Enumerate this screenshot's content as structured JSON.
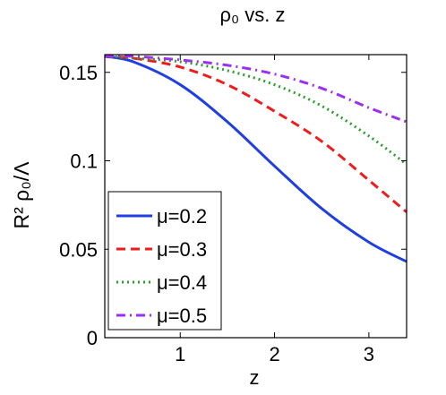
{
  "chart_data": {
    "type": "line",
    "title": "ρ₀ vs. z",
    "xlabel": "z",
    "ylabel": "R² ρ₀/Λ",
    "xlim": [
      0.2,
      3.4
    ],
    "ylim": [
      0,
      0.16
    ],
    "xticks": [
      1,
      2,
      3
    ],
    "xtick_labels": [
      "1",
      "2",
      "3"
    ],
    "yticks": [
      0,
      0.05,
      0.1,
      0.15
    ],
    "ytick_labels": [
      "0",
      "0.05",
      "0.1",
      "0.15"
    ],
    "grid": false,
    "legend": "bottom-left",
    "x": [
      0.2,
      0.5,
      1.0,
      1.5,
      2.0,
      2.5,
      3.0,
      3.4
    ],
    "series": [
      {
        "name": "μ=0.2",
        "color": "#1f3fe0",
        "dash": "solid",
        "values": [
          0.159,
          0.156,
          0.143,
          0.122,
          0.097,
          0.073,
          0.054,
          0.043
        ]
      },
      {
        "name": "μ=0.3",
        "color": "#ee1c1c",
        "dash": "dashed",
        "values": [
          0.159,
          0.158,
          0.153,
          0.143,
          0.128,
          0.111,
          0.089,
          0.071
        ]
      },
      {
        "name": "μ=0.4",
        "color": "#2a9e2a",
        "dash": "dotted",
        "values": [
          0.159,
          0.158,
          0.156,
          0.151,
          0.143,
          0.131,
          0.114,
          0.098
        ]
      },
      {
        "name": "μ=0.5",
        "color": "#9b2ff0",
        "dash": "dashdot",
        "values": [
          0.159,
          0.159,
          0.157,
          0.154,
          0.149,
          0.141,
          0.13,
          0.122
        ]
      }
    ]
  }
}
